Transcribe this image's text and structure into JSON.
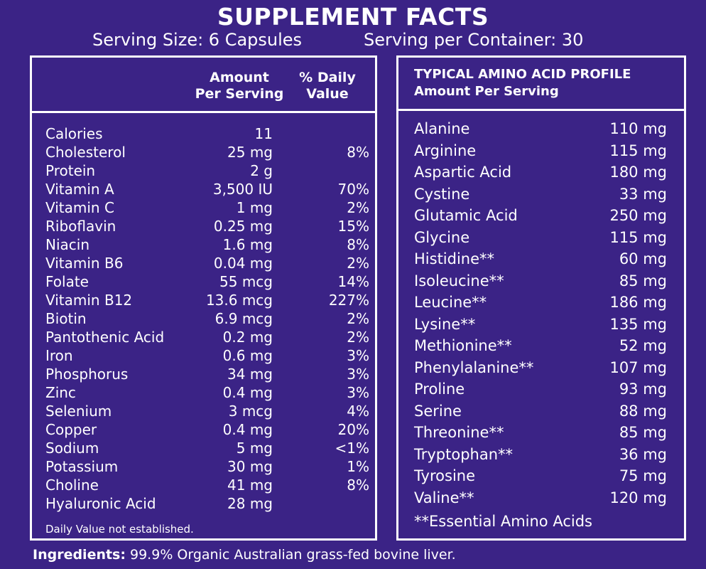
{
  "title": "SUPPLEMENT FACTS",
  "serving_size": "Serving Size: 6 Capsules",
  "servings_per_container": "Serving per Container: 30",
  "nutrition": {
    "col_amount_line1": "Amount",
    "col_amount_line2": "Per Serving",
    "col_dv_line1": "% Daily",
    "col_dv_line2": "Value",
    "rows": [
      {
        "name": "Calories",
        "amount": "11",
        "dv": ""
      },
      {
        "name": "Cholesterol",
        "amount": "25 mg",
        "dv": "8%"
      },
      {
        "name": "Protein",
        "amount": "2 g",
        "dv": ""
      },
      {
        "name": "Vitamin A",
        "amount": "3,500 IU",
        "dv": "70%"
      },
      {
        "name": "Vitamin C",
        "amount": "1 mg",
        "dv": "2%"
      },
      {
        "name": "Riboflavin",
        "amount": "0.25 mg",
        "dv": "15%"
      },
      {
        "name": "Niacin",
        "amount": "1.6 mg",
        "dv": "8%"
      },
      {
        "name": "Vitamin B6",
        "amount": "0.04 mg",
        "dv": "2%"
      },
      {
        "name": "Folate",
        "amount": "55 mcg",
        "dv": "14%"
      },
      {
        "name": "Vitamin B12",
        "amount": "13.6 mcg",
        "dv": "227%"
      },
      {
        "name": "Biotin",
        "amount": "6.9 mcg",
        "dv": "2%"
      },
      {
        "name": "Pantothenic Acid",
        "amount": "0.2 mg",
        "dv": "2%"
      },
      {
        "name": "Iron",
        "amount": "0.6 mg",
        "dv": "3%"
      },
      {
        "name": "Phosphorus",
        "amount": "34 mg",
        "dv": "3%"
      },
      {
        "name": "Zinc",
        "amount": "0.4 mg",
        "dv": "3%"
      },
      {
        "name": "Selenium",
        "amount": "3 mcg",
        "dv": "4%"
      },
      {
        "name": "Copper",
        "amount": "0.4 mg",
        "dv": "20%"
      },
      {
        "name": "Sodium",
        "amount": "5 mg",
        "dv": "<1%"
      },
      {
        "name": "Potassium",
        "amount": "30 mg",
        "dv": "1%"
      },
      {
        "name": "Choline",
        "amount": "41 mg",
        "dv": "8%"
      },
      {
        "name": "Hyaluronic Acid",
        "amount": "28 mg",
        "dv": ""
      }
    ],
    "footnote": "Daily Value not established."
  },
  "amino": {
    "heading_line1": "TYPICAL AMINO ACID PROFILE",
    "heading_line2": "Amount Per Serving",
    "rows": [
      {
        "name": "Alanine",
        "amount": "110 mg"
      },
      {
        "name": "Arginine",
        "amount": "115 mg"
      },
      {
        "name": "Aspartic Acid",
        "amount": "180 mg"
      },
      {
        "name": "Cystine",
        "amount": "33 mg"
      },
      {
        "name": "Glutamic Acid",
        "amount": "250 mg"
      },
      {
        "name": "Glycine",
        "amount": "115 mg"
      },
      {
        "name": "Histidine**",
        "amount": "60 mg"
      },
      {
        "name": "Isoleucine**",
        "amount": "85 mg"
      },
      {
        "name": "Leucine**",
        "amount": "186 mg"
      },
      {
        "name": "Lysine**",
        "amount": "135 mg"
      },
      {
        "name": "Methionine**",
        "amount": "52 mg"
      },
      {
        "name": "Phenylalanine**",
        "amount": "107 mg"
      },
      {
        "name": "Proline",
        "amount": "93 mg"
      },
      {
        "name": "Serine",
        "amount": "88 mg"
      },
      {
        "name": "Threonine**",
        "amount": "85 mg"
      },
      {
        "name": "Tryptophan**",
        "amount": "36 mg"
      },
      {
        "name": "Tyrosine",
        "amount": "75 mg"
      },
      {
        "name": "Valine**",
        "amount": "120 mg"
      }
    ],
    "footnote": "**Essential Amino Acids"
  },
  "ingredients": {
    "label": "Ingredients:",
    "text": " 99.9% Organic Australian grass-fed bovine liver."
  },
  "colors": {
    "background": "#3b2386",
    "text": "#ffffff"
  }
}
